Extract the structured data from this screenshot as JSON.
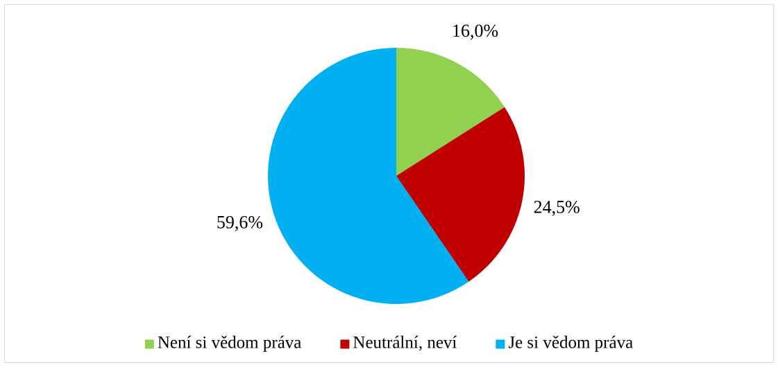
{
  "chart_data": {
    "type": "pie",
    "categories": [
      "Není si vědom práva",
      "Neutrální, neví",
      "Je si vědom práva"
    ],
    "values": [
      16.0,
      24.5,
      59.6
    ],
    "value_labels": [
      "16,0%",
      "24,5%",
      "59,6%"
    ],
    "colors": [
      "#92d050",
      "#c00000",
      "#00b0f0"
    ],
    "legend": "bottom"
  }
}
